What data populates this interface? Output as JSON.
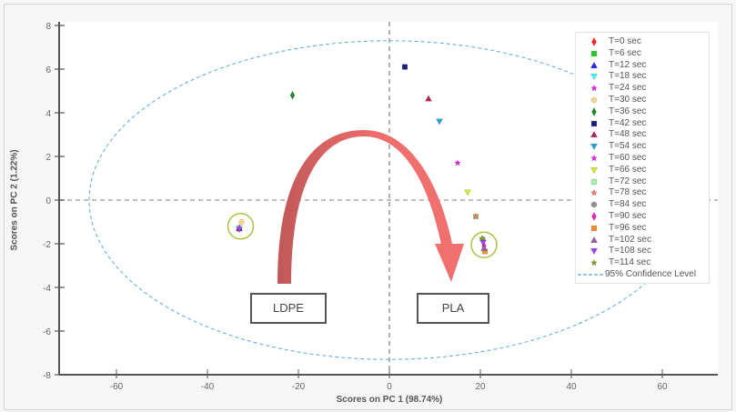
{
  "chart_data": {
    "type": "scatter",
    "title": "",
    "xlabel": "Scores on PC 1 (98.74%)",
    "ylabel": "Scores on PC 2 (1.22%)",
    "xlim": [
      -75,
      72
    ],
    "ylim": [
      -8,
      8
    ],
    "xticks": [
      -60,
      -40,
      -20,
      0,
      20,
      40,
      60
    ],
    "yticks": [
      8,
      6,
      4,
      2,
      0,
      -2,
      -4,
      -6,
      -8
    ],
    "grid": false,
    "legend_position": "upper right",
    "series": [
      {
        "name": "T=0 sec",
        "marker": "diamond",
        "color": "#ff2020",
        "points": [
          [
            -33,
            -1.3
          ]
        ]
      },
      {
        "name": "T=6 sec",
        "marker": "square",
        "color": "#22cc22",
        "points": [
          [
            -33,
            -1.3
          ]
        ]
      },
      {
        "name": "T=12 sec",
        "marker": "triangle-up",
        "color": "#2222ee",
        "points": [
          [
            -33,
            -1.3
          ]
        ]
      },
      {
        "name": "T=18 sec",
        "marker": "triangle-down",
        "color": "#44eeee",
        "points": [
          [
            -33,
            -1.3
          ]
        ]
      },
      {
        "name": "T=24 sec",
        "marker": "star",
        "color": "#ee22ee",
        "points": [
          [
            -33,
            -1.3
          ]
        ]
      },
      {
        "name": "T=30 sec",
        "marker": "circle",
        "color": "#f7d68a",
        "points": [
          [
            -32.5,
            -1.0
          ]
        ]
      },
      {
        "name": "T=36 sec",
        "marker": "diamond",
        "color": "#1a8a2a",
        "points": [
          [
            -21.3,
            4.8
          ]
        ]
      },
      {
        "name": "T=42 sec",
        "marker": "square",
        "color": "#1a1a80",
        "points": [
          [
            3.4,
            6.1
          ]
        ]
      },
      {
        "name": "T=48 sec",
        "marker": "triangle-up",
        "color": "#b02060",
        "points": [
          [
            8.6,
            4.65
          ]
        ]
      },
      {
        "name": "T=54 sec",
        "marker": "triangle-down",
        "color": "#2a9fd8",
        "points": [
          [
            11.0,
            3.6
          ]
        ]
      },
      {
        "name": "T=60 sec",
        "marker": "star",
        "color": "#ee22ee",
        "points": [
          [
            15.0,
            1.7
          ]
        ]
      },
      {
        "name": "T=66 sec",
        "marker": "triangle-down",
        "color": "#ccee22",
        "points": [
          [
            17.2,
            0.35
          ]
        ]
      },
      {
        "name": "T=72 sec",
        "marker": "square",
        "color": "#a8f0a8",
        "points": [
          [
            19.0,
            -0.75
          ]
        ]
      },
      {
        "name": "T=78 sec",
        "marker": "star",
        "color": "#f07860",
        "points": [
          [
            19.0,
            -0.75
          ]
        ]
      },
      {
        "name": "T=84 sec",
        "marker": "circle",
        "color": "#909090",
        "points": [
          [
            20.5,
            -1.8
          ]
        ]
      },
      {
        "name": "T=90 sec",
        "marker": "diamond",
        "color": "#ee22cc",
        "points": [
          [
            20.8,
            -2.1
          ]
        ]
      },
      {
        "name": "T=96 sec",
        "marker": "square",
        "color": "#f0902a",
        "points": [
          [
            21.0,
            -2.35
          ]
        ]
      },
      {
        "name": "T=102 sec",
        "marker": "triangle-up",
        "color": "#9060a8",
        "points": [
          [
            20.8,
            -2.2
          ]
        ]
      },
      {
        "name": "T=108 sec",
        "marker": "triangle-down",
        "color": "#a040f0",
        "points": [
          [
            20.6,
            -1.95
          ]
        ]
      },
      {
        "name": "T=114 sec",
        "marker": "star",
        "color": "#80a020",
        "points": [
          [
            20.4,
            -1.75
          ]
        ]
      }
    ],
    "confidence_ellipse": {
      "name": "95% Confidence Level",
      "center": [
        0,
        0
      ],
      "x_radius": 66,
      "y_radius": 7.3,
      "color": "#5aa8d8",
      "style": "dashed"
    },
    "annotations": [
      {
        "type": "label_box",
        "text": "LDPE",
        "x": -23,
        "y": -5.0
      },
      {
        "type": "label_box",
        "text": "PLA",
        "x": 13.5,
        "y": -5.0
      },
      {
        "type": "curved_arrow",
        "from": [
          -23.5,
          -3.8
        ],
        "to": [
          13,
          -3.7
        ],
        "peak": [
          -5,
          3.2
        ],
        "color": "#e86868"
      },
      {
        "type": "circle",
        "x": -32.7,
        "y": -1.2,
        "color": "#b0c040"
      },
      {
        "type": "circle",
        "x": 20.8,
        "y": -2.05,
        "color": "#b0c040"
      }
    ]
  },
  "labels": {
    "xlabel": "Scores on PC 1 (98.74%)",
    "ylabel": "Scores on PC 2 (1.22%)",
    "ldpe": "LDPE",
    "pla": "PLA",
    "legend_ci": "95% Confidence Level"
  }
}
